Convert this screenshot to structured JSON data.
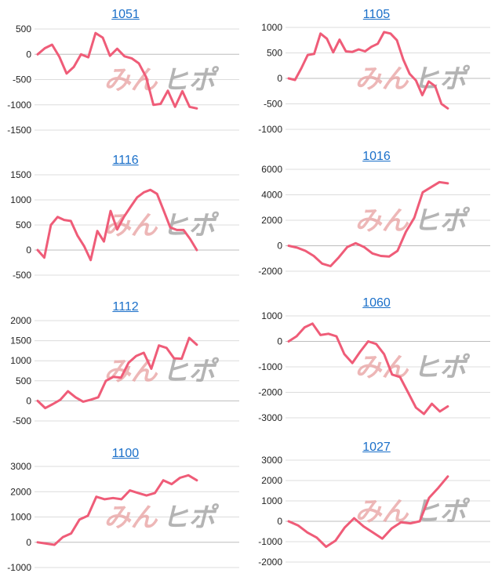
{
  "watermark": {
    "part1": "みん",
    "part2": "ヒポ"
  },
  "colors": {
    "line": "#ef5c78",
    "title": "#1a6fc9"
  },
  "chart_data": [
    {
      "type": "line",
      "title": "1051",
      "ylim": [
        -1500,
        500
      ],
      "yticks": [
        500,
        0,
        -500,
        -1000,
        -1500
      ],
      "values": [
        0,
        120,
        190,
        -50,
        -380,
        -250,
        0,
        -60,
        420,
        330,
        -30,
        110,
        -40,
        -80,
        -180,
        -450,
        -1000,
        -980,
        -720,
        -1040,
        -730,
        -1040,
        -1070
      ]
    },
    {
      "type": "line",
      "title": "1105",
      "ylim": [
        -1000,
        1000
      ],
      "yticks": [
        1000,
        500,
        0,
        -500,
        -1000
      ],
      "values": [
        0,
        -30,
        200,
        460,
        480,
        880,
        780,
        510,
        760,
        530,
        520,
        570,
        530,
        620,
        680,
        910,
        880,
        750,
        370,
        90,
        -40,
        -330,
        -60,
        -150,
        -500,
        -590
      ]
    },
    {
      "type": "line",
      "title": "1116",
      "ylim": [
        -500,
        1500
      ],
      "yticks": [
        1500,
        1000,
        500,
        0,
        -500
      ],
      "values": [
        0,
        -150,
        500,
        660,
        600,
        580,
        290,
        80,
        -200,
        380,
        170,
        780,
        410,
        660,
        860,
        1050,
        1150,
        1200,
        1120,
        790,
        450,
        400,
        400,
        220,
        0
      ]
    },
    {
      "type": "line",
      "title": "1016",
      "ylim": [
        -2000,
        6000
      ],
      "yticks": [
        6000,
        4000,
        2000,
        0,
        -2000
      ],
      "values": [
        0,
        -150,
        -400,
        -800,
        -1400,
        -1600,
        -900,
        -100,
        200,
        -100,
        -600,
        -800,
        -850,
        -400,
        1100,
        2200,
        4200,
        4600,
        5000,
        4900
      ]
    },
    {
      "type": "line",
      "title": "1112",
      "ylim": [
        -500,
        2000
      ],
      "yticks": [
        2000,
        1500,
        1000,
        500,
        0,
        -500
      ],
      "values": [
        0,
        -180,
        -80,
        30,
        240,
        90,
        -20,
        30,
        90,
        500,
        600,
        580,
        950,
        1120,
        1200,
        800,
        1380,
        1320,
        1060,
        1050,
        1570,
        1400
      ]
    },
    {
      "type": "line",
      "title": "1060",
      "ylim": [
        -3000,
        1000
      ],
      "yticks": [
        1000,
        0,
        -1000,
        -2000,
        -3000
      ],
      "values": [
        0,
        200,
        550,
        700,
        250,
        300,
        200,
        -500,
        -850,
        -400,
        0,
        -100,
        -500,
        -1300,
        -1400,
        -2000,
        -2600,
        -2850,
        -2450,
        -2750,
        -2550
      ]
    },
    {
      "type": "line",
      "title": "1100",
      "ylim": [
        -1000,
        3000
      ],
      "yticks": [
        3000,
        2000,
        1000,
        0,
        -1000
      ],
      "values": [
        0,
        -50,
        -100,
        200,
        350,
        900,
        1050,
        1800,
        1700,
        1750,
        1700,
        2050,
        1950,
        1850,
        1950,
        2450,
        2300,
        2550,
        2650,
        2450
      ]
    },
    {
      "type": "line",
      "title": "1027",
      "ylim": [
        -2000,
        3000
      ],
      "yticks": [
        3000,
        2000,
        1000,
        0,
        -1000,
        -2000
      ],
      "values": [
        0,
        -200,
        -550,
        -800,
        -1250,
        -950,
        -300,
        150,
        -250,
        -550,
        -850,
        -350,
        -50,
        -100,
        0,
        1150,
        1650,
        2200
      ]
    }
  ]
}
